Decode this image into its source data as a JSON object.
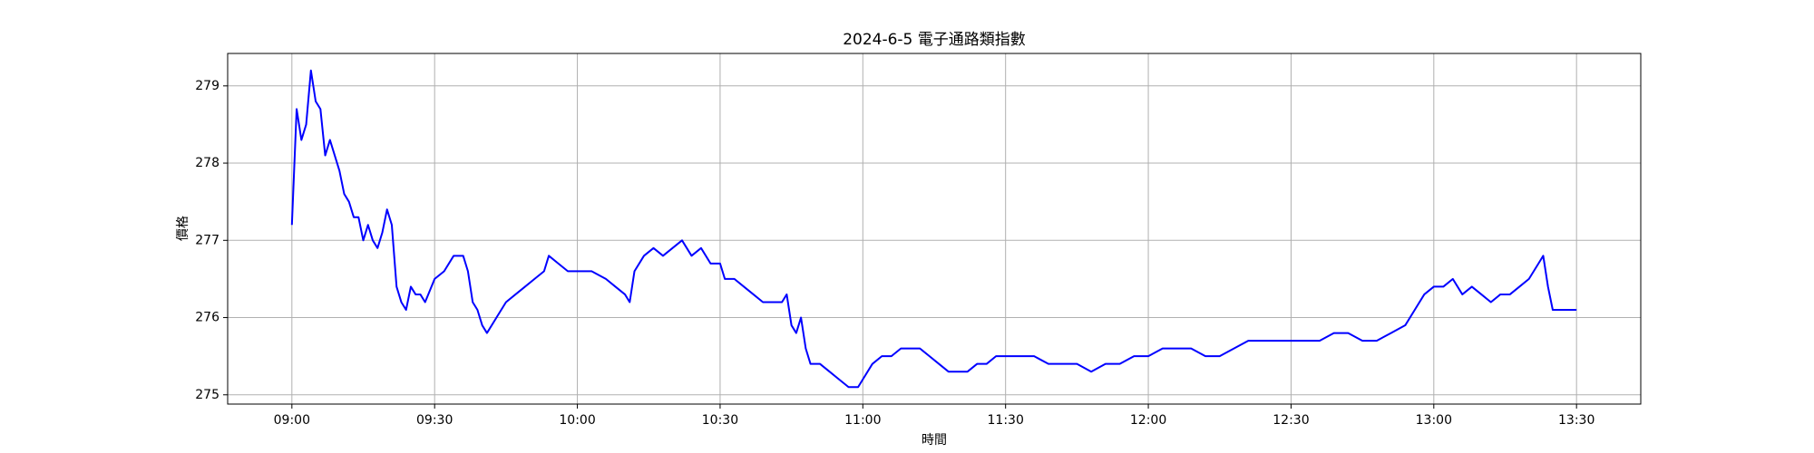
{
  "chart_data": {
    "type": "line",
    "title": "2024-6-5 電子通路類指數",
    "xlabel": "時間",
    "ylabel": "價格",
    "color": "#0000ff",
    "grid": true,
    "x": [
      "09:00",
      "09:01",
      "09:02",
      "09:03",
      "09:04",
      "09:05",
      "09:06",
      "09:07",
      "09:08",
      "09:10",
      "09:11",
      "09:12",
      "09:13",
      "09:14",
      "09:15",
      "09:16",
      "09:17",
      "09:18",
      "09:19",
      "09:20",
      "09:21",
      "09:22",
      "09:23",
      "09:24",
      "09:25",
      "09:26",
      "09:27",
      "09:28",
      "09:30",
      "09:32",
      "09:34",
      "09:36",
      "09:37",
      "09:38",
      "09:39",
      "09:40",
      "09:41",
      "09:43",
      "09:45",
      "09:47",
      "09:49",
      "09:51",
      "09:53",
      "09:54",
      "09:56",
      "09:58",
      "10:00",
      "10:03",
      "10:06",
      "10:08",
      "10:10",
      "10:11",
      "10:12",
      "10:14",
      "10:16",
      "10:18",
      "10:20",
      "10:22",
      "10:24",
      "10:26",
      "10:28",
      "10:30",
      "10:31",
      "10:33",
      "10:35",
      "10:37",
      "10:39",
      "10:41",
      "10:43",
      "10:44",
      "10:45",
      "10:46",
      "10:47",
      "10:48",
      "10:49",
      "10:51",
      "10:53",
      "10:55",
      "10:57",
      "10:59",
      "11:00",
      "11:02",
      "11:04",
      "11:06",
      "11:08",
      "11:10",
      "11:12",
      "11:14",
      "11:16",
      "11:18",
      "11:20",
      "11:22",
      "11:24",
      "11:26",
      "11:28",
      "11:30",
      "11:33",
      "11:36",
      "11:39",
      "11:42",
      "11:45",
      "11:48",
      "11:51",
      "11:54",
      "11:57",
      "12:00",
      "12:03",
      "12:06",
      "12:09",
      "12:12",
      "12:15",
      "12:18",
      "12:21",
      "12:24",
      "12:27",
      "12:30",
      "12:33",
      "12:36",
      "12:39",
      "12:42",
      "12:45",
      "12:48",
      "12:51",
      "12:54",
      "12:56",
      "12:58",
      "13:00",
      "13:02",
      "13:04",
      "13:06",
      "13:08",
      "13:10",
      "13:12",
      "13:14",
      "13:16",
      "13:18",
      "13:20",
      "13:22",
      "13:23",
      "13:24",
      "13:25",
      "13:30"
    ],
    "values": [
      277.2,
      278.7,
      278.3,
      278.5,
      279.2,
      278.8,
      278.7,
      278.1,
      278.3,
      277.9,
      277.6,
      277.5,
      277.3,
      277.3,
      277.0,
      277.2,
      277.0,
      276.9,
      277.1,
      277.4,
      277.2,
      276.4,
      276.2,
      276.1,
      276.4,
      276.3,
      276.3,
      276.2,
      276.5,
      276.6,
      276.8,
      276.8,
      276.6,
      276.2,
      276.1,
      275.9,
      275.8,
      276.0,
      276.2,
      276.3,
      276.4,
      276.5,
      276.6,
      276.8,
      276.7,
      276.6,
      276.6,
      276.6,
      276.5,
      276.4,
      276.3,
      276.2,
      276.6,
      276.8,
      276.9,
      276.8,
      276.9,
      277.0,
      276.8,
      276.9,
      276.7,
      276.7,
      276.5,
      276.5,
      276.4,
      276.3,
      276.2,
      276.2,
      276.2,
      276.3,
      275.9,
      275.8,
      276.0,
      275.6,
      275.4,
      275.4,
      275.3,
      275.2,
      275.1,
      275.1,
      275.2,
      275.4,
      275.5,
      275.5,
      275.6,
      275.6,
      275.6,
      275.5,
      275.4,
      275.3,
      275.3,
      275.3,
      275.4,
      275.4,
      275.5,
      275.5,
      275.5,
      275.5,
      275.4,
      275.4,
      275.4,
      275.3,
      275.4,
      275.4,
      275.5,
      275.5,
      275.6,
      275.6,
      275.6,
      275.5,
      275.5,
      275.6,
      275.7,
      275.7,
      275.7,
      275.7,
      275.7,
      275.7,
      275.8,
      275.8,
      275.7,
      275.7,
      275.8,
      275.9,
      276.1,
      276.3,
      276.4,
      276.4,
      276.5,
      276.3,
      276.4,
      276.3,
      276.2,
      276.3,
      276.3,
      276.4,
      276.5,
      276.7,
      276.8,
      276.4,
      276.1,
      276.1
    ],
    "xlim": [
      "08:46:30",
      "13:43:30"
    ],
    "xticks": [
      "09:00",
      "09:30",
      "10:00",
      "10:30",
      "11:00",
      "11:30",
      "12:00",
      "12:30",
      "13:00",
      "13:30"
    ],
    "ylim": [
      274.88,
      279.42
    ],
    "yticks": [
      275,
      276,
      277,
      278,
      279
    ]
  }
}
